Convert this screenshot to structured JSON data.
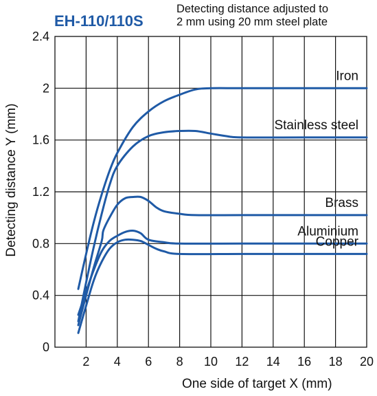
{
  "header": {
    "model": "EH-110/110S",
    "note_line1": "Detecting distance adjusted to",
    "note_line2": "2 mm using 20 mm steel plate"
  },
  "colors": {
    "curve": "#1f5aa6",
    "title": "#1f5aa6",
    "grid": "#111111"
  },
  "chart_data": {
    "type": "line",
    "title": "EH-110/110S",
    "xlabel": "One side of target X (mm)",
    "ylabel": "Detecting distance Y (mm)",
    "xlim": [
      0,
      20
    ],
    "ylim": [
      0,
      2.4
    ],
    "xticks": [
      2,
      4,
      6,
      8,
      10,
      12,
      14,
      16,
      18,
      20
    ],
    "yticks": [
      0,
      0.4,
      0.8,
      1.2,
      1.6,
      2,
      2.4
    ],
    "xtick_labels": [
      "2",
      "4",
      "6",
      "8",
      "10",
      "12",
      "14",
      "16",
      "18",
      "20"
    ],
    "ytick_labels": [
      "0",
      "0.4",
      "0.8",
      "1.2",
      "1.6",
      "2",
      "2.4"
    ],
    "grid": true,
    "series": [
      {
        "name": "Iron",
        "x": [
          1.5,
          2,
          2.5,
          3,
          3.5,
          4,
          5,
          6,
          7,
          8,
          9,
          10,
          12,
          16,
          20
        ],
        "y": [
          0.45,
          0.72,
          0.97,
          1.18,
          1.36,
          1.5,
          1.7,
          1.82,
          1.9,
          1.95,
          1.99,
          2.0,
          2.0,
          2.0,
          2.0
        ]
      },
      {
        "name": "Stainless steel",
        "x": [
          1.5,
          2,
          2.5,
          3,
          3.5,
          4,
          5,
          6,
          7,
          8,
          9,
          10,
          11,
          12,
          16,
          20
        ],
        "y": [
          0.2,
          0.5,
          0.78,
          1.03,
          1.25,
          1.4,
          1.55,
          1.63,
          1.66,
          1.67,
          1.67,
          1.65,
          1.63,
          1.62,
          1.62,
          1.62
        ]
      },
      {
        "name": "Brass",
        "x": [
          1.5,
          2,
          2.5,
          3,
          3.1,
          3.5,
          4,
          4.5,
          5,
          5.5,
          6,
          6.5,
          7,
          8,
          9,
          12,
          16,
          20
        ],
        "y": [
          0.17,
          0.4,
          0.62,
          0.82,
          0.9,
          1.0,
          1.1,
          1.15,
          1.16,
          1.16,
          1.13,
          1.08,
          1.05,
          1.03,
          1.02,
          1.02,
          1.02,
          1.02
        ]
      },
      {
        "name": "Aluminium",
        "x": [
          1.5,
          2,
          2.5,
          3,
          3.5,
          4,
          4.5,
          5,
          5.5,
          6,
          7,
          8,
          12,
          16,
          20
        ],
        "y": [
          0.25,
          0.43,
          0.6,
          0.74,
          0.82,
          0.86,
          0.89,
          0.9,
          0.88,
          0.83,
          0.81,
          0.8,
          0.8,
          0.8,
          0.8
        ]
      },
      {
        "name": "Copper",
        "x": [
          1.5,
          2,
          2.5,
          3,
          3.5,
          4,
          4.5,
          5,
          5.5,
          6,
          6.5,
          7,
          8,
          12,
          16,
          20
        ],
        "y": [
          0.11,
          0.32,
          0.52,
          0.66,
          0.76,
          0.81,
          0.83,
          0.83,
          0.82,
          0.79,
          0.76,
          0.74,
          0.72,
          0.72,
          0.72,
          0.72
        ]
      }
    ]
  }
}
